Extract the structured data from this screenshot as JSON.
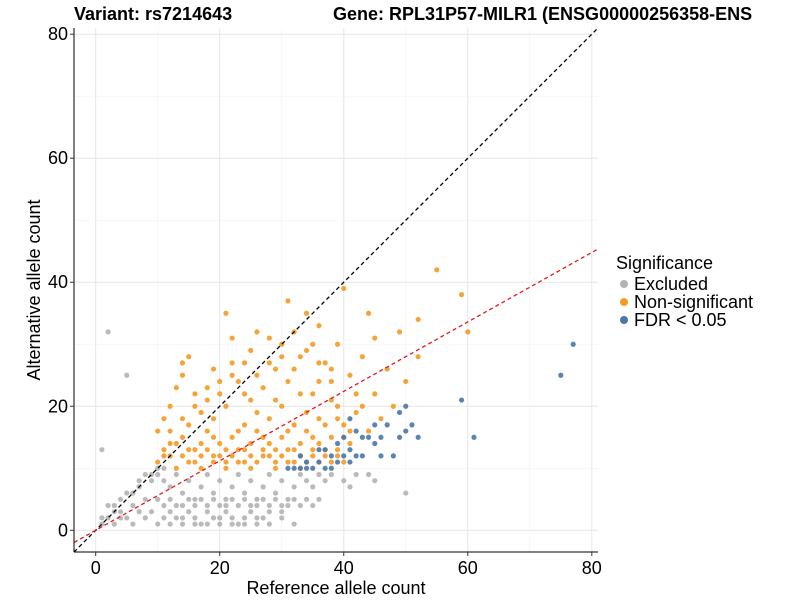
{
  "header": {
    "variant_title": "Variant: rs7214643",
    "gene_title": "Gene: RPL31P57-MILR1 (ENSG00000256358-ENS"
  },
  "legend": {
    "title": "Significance",
    "items": [
      {
        "label": "Excluded",
        "color": "#b3b3b3"
      },
      {
        "label": "Non-significant",
        "color": "#f59a23"
      },
      {
        "label": "FDR < 0.05",
        "color": "#4a77a8"
      }
    ]
  },
  "chart_data": {
    "type": "scatter",
    "xlabel": "Reference allele count",
    "ylabel": "Alternative allele count",
    "xlim": [
      -3.5,
      81
    ],
    "ylim": [
      -3.5,
      81
    ],
    "xticks": [
      0,
      20,
      40,
      60,
      80
    ],
    "yticks": [
      0,
      20,
      40,
      60,
      80
    ],
    "grid": true,
    "reference_lines": [
      {
        "name": "identity",
        "slope": 1.0,
        "intercept": 0,
        "style": "dashed",
        "color": "#000000"
      },
      {
        "name": "fit",
        "slope": 0.56,
        "intercept": 0,
        "style": "dashed",
        "color": "#e41a1c"
      }
    ],
    "series": [
      {
        "name": "Excluded",
        "color": "#b3b3b3",
        "points": [
          [
            2,
            32
          ],
          [
            5,
            25
          ],
          [
            1,
            13
          ],
          [
            50,
            6
          ],
          [
            1,
            2
          ],
          [
            2,
            4
          ],
          [
            3,
            3
          ],
          [
            4,
            5
          ],
          [
            5,
            6
          ],
          [
            6,
            4
          ],
          [
            7,
            7
          ],
          [
            8,
            5
          ],
          [
            9,
            8
          ],
          [
            3,
            1
          ],
          [
            4,
            2
          ],
          [
            5,
            2
          ],
          [
            6,
            1
          ],
          [
            7,
            3
          ],
          [
            8,
            2
          ],
          [
            9,
            3
          ],
          [
            10,
            1
          ],
          [
            11,
            2
          ],
          [
            12,
            3
          ],
          [
            13,
            2
          ],
          [
            14,
            1
          ],
          [
            15,
            3
          ],
          [
            16,
            2
          ],
          [
            17,
            1
          ],
          [
            18,
            3
          ],
          [
            19,
            2
          ],
          [
            20,
            1
          ],
          [
            21,
            3
          ],
          [
            22,
            2
          ],
          [
            23,
            1
          ],
          [
            24,
            2
          ],
          [
            25,
            3
          ],
          [
            26,
            1
          ],
          [
            27,
            2
          ],
          [
            28,
            1
          ],
          [
            30,
            2
          ],
          [
            32,
            1
          ],
          [
            10,
            9
          ],
          [
            11,
            8
          ],
          [
            12,
            7
          ],
          [
            13,
            9
          ],
          [
            14,
            6
          ],
          [
            15,
            8
          ],
          [
            16,
            5
          ],
          [
            17,
            7
          ],
          [
            18,
            9
          ],
          [
            19,
            6
          ],
          [
            20,
            8
          ],
          [
            21,
            5
          ],
          [
            22,
            7
          ],
          [
            23,
            9
          ],
          [
            24,
            6
          ],
          [
            25,
            8
          ],
          [
            26,
            5
          ],
          [
            27,
            7
          ],
          [
            28,
            9
          ],
          [
            29,
            6
          ],
          [
            30,
            8
          ],
          [
            31,
            5
          ],
          [
            32,
            7
          ],
          [
            33,
            9
          ],
          [
            34,
            8
          ],
          [
            35,
            7
          ],
          [
            36,
            9
          ],
          [
            37,
            8
          ],
          [
            38,
            9
          ],
          [
            40,
            8
          ],
          [
            42,
            9
          ],
          [
            45,
            8
          ],
          [
            41,
            7
          ],
          [
            44,
            9
          ],
          [
            10,
            5
          ],
          [
            11,
            4
          ],
          [
            12,
            5
          ],
          [
            13,
            4
          ],
          [
            14,
            4
          ],
          [
            15,
            5
          ],
          [
            16,
            4
          ],
          [
            17,
            5
          ],
          [
            18,
            4
          ],
          [
            19,
            5
          ],
          [
            20,
            4
          ],
          [
            21,
            4
          ],
          [
            22,
            5
          ],
          [
            23,
            4
          ],
          [
            24,
            5
          ],
          [
            25,
            4
          ],
          [
            26,
            4
          ],
          [
            27,
            5
          ],
          [
            28,
            4
          ],
          [
            29,
            5
          ],
          [
            30,
            4
          ],
          [
            31,
            4
          ],
          [
            32,
            5
          ],
          [
            33,
            4
          ],
          [
            34,
            5
          ],
          [
            35,
            4
          ],
          [
            36,
            5
          ],
          [
            8,
            9
          ],
          [
            9,
            9
          ],
          [
            10,
            10
          ],
          [
            11,
            10
          ],
          [
            7,
            8
          ],
          [
            6,
            6
          ],
          [
            4,
            3
          ],
          [
            3,
            4
          ],
          [
            2,
            2
          ],
          [
            1,
            1
          ],
          [
            12,
            1
          ],
          [
            14,
            2
          ],
          [
            16,
            1
          ],
          [
            18,
            1
          ],
          [
            20,
            2
          ],
          [
            22,
            1
          ],
          [
            24,
            1
          ],
          [
            26,
            2
          ],
          [
            28,
            3
          ],
          [
            30,
            3
          ]
        ]
      },
      {
        "name": "Non-significant",
        "color": "#f59a23",
        "points": [
          [
            55,
            42
          ],
          [
            59,
            38
          ],
          [
            52,
            34
          ],
          [
            60,
            32
          ],
          [
            21,
            35
          ],
          [
            26,
            32
          ],
          [
            31,
            37
          ],
          [
            40,
            39
          ],
          [
            44,
            35
          ],
          [
            45,
            31
          ],
          [
            49,
            32
          ],
          [
            36,
            33
          ],
          [
            39,
            30
          ],
          [
            22,
            31
          ],
          [
            28,
            31
          ],
          [
            34,
            35
          ],
          [
            35,
            30
          ],
          [
            25,
            29
          ],
          [
            30,
            28
          ],
          [
            33,
            28
          ],
          [
            24,
            27
          ],
          [
            29,
            26
          ],
          [
            32,
            26
          ],
          [
            37,
            27
          ],
          [
            15,
            28
          ],
          [
            14,
            27
          ],
          [
            14,
            25
          ],
          [
            19,
            26
          ],
          [
            22,
            25
          ],
          [
            23,
            24
          ],
          [
            27,
            23
          ],
          [
            31,
            24
          ],
          [
            36,
            24
          ],
          [
            41,
            25
          ],
          [
            42,
            22
          ],
          [
            13,
            23
          ],
          [
            16,
            22
          ],
          [
            18,
            21
          ],
          [
            20,
            22
          ],
          [
            25,
            21
          ],
          [
            29,
            21
          ],
          [
            33,
            22
          ],
          [
            38,
            21
          ],
          [
            45,
            22
          ],
          [
            12,
            20
          ],
          [
            17,
            19
          ],
          [
            21,
            20
          ],
          [
            26,
            19
          ],
          [
            30,
            20
          ],
          [
            34,
            19
          ],
          [
            39,
            20
          ],
          [
            43,
            20
          ],
          [
            11,
            18
          ],
          [
            15,
            17
          ],
          [
            19,
            18
          ],
          [
            24,
            17
          ],
          [
            28,
            18
          ],
          [
            32,
            17
          ],
          [
            36,
            18
          ],
          [
            40,
            17
          ],
          [
            10,
            16
          ],
          [
            14,
            15
          ],
          [
            18,
            16
          ],
          [
            22,
            15
          ],
          [
            26,
            16
          ],
          [
            30,
            15
          ],
          [
            34,
            16
          ],
          [
            38,
            15
          ],
          [
            12,
            14
          ],
          [
            16,
            13
          ],
          [
            20,
            14
          ],
          [
            24,
            13
          ],
          [
            28,
            14
          ],
          [
            32,
            13
          ],
          [
            36,
            14
          ],
          [
            11,
            12
          ],
          [
            15,
            11
          ],
          [
            19,
            12
          ],
          [
            23,
            11
          ],
          [
            27,
            12
          ],
          [
            31,
            11
          ],
          [
            35,
            12
          ],
          [
            13,
            10
          ],
          [
            17,
            10
          ],
          [
            21,
            10
          ],
          [
            25,
            10
          ],
          [
            29,
            10
          ],
          [
            33,
            10
          ],
          [
            37,
            13
          ],
          [
            39,
            12
          ],
          [
            41,
            14
          ],
          [
            44,
            16
          ],
          [
            46,
            18
          ],
          [
            48,
            20
          ],
          [
            50,
            24
          ],
          [
            52,
            28
          ],
          [
            47,
            26
          ],
          [
            43,
            28
          ],
          [
            38,
            26
          ],
          [
            35,
            22
          ],
          [
            42,
            19
          ],
          [
            40,
            15
          ],
          [
            12,
            16
          ],
          [
            14,
            18
          ],
          [
            16,
            20
          ],
          [
            18,
            23
          ],
          [
            20,
            24
          ],
          [
            22,
            27
          ],
          [
            24,
            22
          ],
          [
            26,
            25
          ],
          [
            28,
            27
          ],
          [
            30,
            30
          ],
          [
            32,
            32
          ],
          [
            34,
            29
          ],
          [
            36,
            27
          ],
          [
            38,
            24
          ],
          [
            17,
            14
          ],
          [
            19,
            15
          ],
          [
            21,
            13
          ],
          [
            23,
            16
          ],
          [
            25,
            14
          ],
          [
            27,
            15
          ],
          [
            29,
            13
          ],
          [
            31,
            16
          ],
          [
            33,
            14
          ],
          [
            35,
            15
          ],
          [
            37,
            17
          ],
          [
            39,
            18
          ],
          [
            41,
            16
          ],
          [
            10,
            11
          ],
          [
            11,
            13
          ],
          [
            12,
            12
          ],
          [
            13,
            14
          ],
          [
            14,
            12
          ],
          [
            15,
            13
          ],
          [
            16,
            11
          ],
          [
            17,
            12
          ],
          [
            18,
            13
          ],
          [
            19,
            11
          ],
          [
            20,
            12
          ],
          [
            21,
            11
          ],
          [
            22,
            12
          ],
          [
            23,
            13
          ],
          [
            24,
            11
          ],
          [
            25,
            12
          ],
          [
            26,
            11
          ],
          [
            27,
            13
          ],
          [
            28,
            12
          ],
          [
            29,
            11
          ],
          [
            30,
            12
          ],
          [
            31,
            13
          ],
          [
            32,
            11
          ],
          [
            33,
            12
          ],
          [
            34,
            11
          ],
          [
            35,
            13
          ],
          [
            36,
            11
          ],
          [
            37,
            12
          ],
          [
            38,
            11
          ],
          [
            39,
            13
          ],
          [
            40,
            11
          ]
        ]
      },
      {
        "name": "FDR < 0.05",
        "color": "#4a77a8",
        "points": [
          [
            77,
            30
          ],
          [
            75,
            25
          ],
          [
            59,
            21
          ],
          [
            61,
            15
          ],
          [
            51,
            17
          ],
          [
            52,
            15
          ],
          [
            49,
            19
          ],
          [
            50,
            20
          ],
          [
            47,
            17
          ],
          [
            46,
            15
          ],
          [
            48,
            12
          ],
          [
            45,
            14
          ],
          [
            43,
            15
          ],
          [
            42,
            16
          ],
          [
            41,
            13
          ],
          [
            40,
            15
          ],
          [
            39,
            14
          ],
          [
            38,
            12
          ],
          [
            37,
            13
          ],
          [
            36,
            11
          ],
          [
            35,
            10
          ],
          [
            34,
            11
          ],
          [
            33,
            12
          ],
          [
            32,
            10
          ],
          [
            31,
            10
          ],
          [
            33,
            10
          ],
          [
            34,
            10
          ],
          [
            36,
            13
          ],
          [
            37,
            10
          ],
          [
            38,
            10
          ],
          [
            39,
            11
          ],
          [
            40,
            12
          ],
          [
            41,
            11
          ],
          [
            42,
            12
          ],
          [
            44,
            15
          ],
          [
            46,
            12
          ],
          [
            49,
            15
          ],
          [
            50,
            16
          ],
          [
            45,
            17
          ],
          [
            43,
            12
          ],
          [
            41,
            18
          ]
        ]
      }
    ]
  }
}
